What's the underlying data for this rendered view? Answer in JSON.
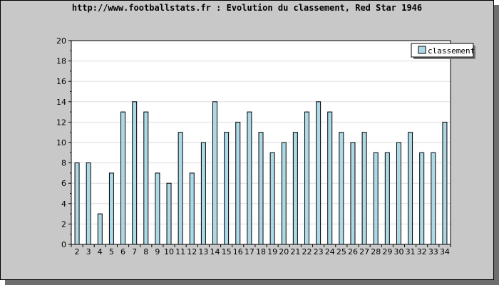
{
  "chart_data": {
    "type": "bar",
    "title": "http://www.footballstats.fr : Evolution du classement, Red Star 1946",
    "xlabel": "",
    "ylabel": "",
    "categories": [
      "2",
      "3",
      "4",
      "5",
      "6",
      "7",
      "8",
      "9",
      "10",
      "11",
      "12",
      "13",
      "14",
      "15",
      "16",
      "17",
      "18",
      "19",
      "20",
      "21",
      "22",
      "23",
      "24",
      "25",
      "26",
      "27",
      "28",
      "29",
      "30",
      "31",
      "32",
      "33",
      "34"
    ],
    "series": [
      {
        "name": "classement",
        "values": [
          8,
          8,
          3,
          7,
          13,
          14,
          13,
          7,
          6,
          11,
          7,
          10,
          14,
          11,
          12,
          13,
          11,
          9,
          10,
          11,
          13,
          14,
          13,
          11,
          10,
          11,
          9,
          9,
          10,
          11,
          9,
          9,
          12
        ]
      }
    ],
    "ylim": [
      0,
      20
    ],
    "yticks": [
      0,
      2,
      4,
      6,
      8,
      10,
      12,
      14,
      16,
      18,
      20
    ],
    "grid": "horizontal",
    "legend_position": "top-right",
    "colors": {
      "bar_fill": "#add8e6",
      "bar_stroke": "#000000",
      "frame_bg": "#c8c8c8",
      "plot_bg": "#ffffff",
      "grid": "#dddddd"
    }
  }
}
